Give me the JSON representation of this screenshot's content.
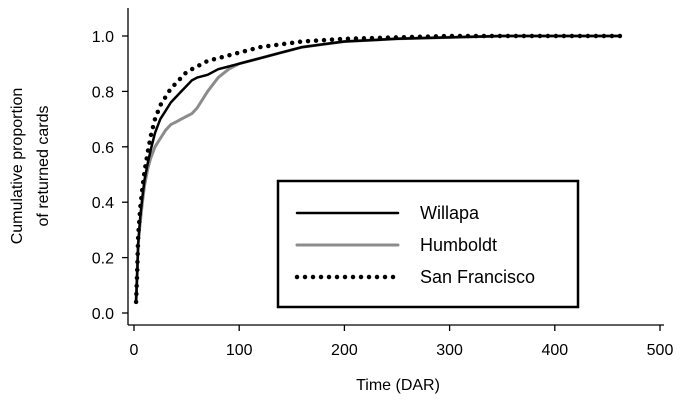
{
  "chart_data": {
    "type": "line",
    "xlabel": "Time (DAR)",
    "ylabel": "Cumulative proportion of returned cards",
    "ylabel_lines": [
      "Cumulative proportion",
      "of returned cards"
    ],
    "xlim": [
      0,
      500
    ],
    "ylim": [
      0.0,
      1.0
    ],
    "x_ticks": [
      0,
      100,
      200,
      300,
      400,
      500
    ],
    "y_ticks": [
      0.0,
      0.2,
      0.4,
      0.6,
      0.8,
      1.0
    ],
    "x_tick_labels": [
      "0",
      "100",
      "200",
      "300",
      "400",
      "500"
    ],
    "y_tick_labels": [
      "0.0",
      "0.2",
      "0.4",
      "0.6",
      "0.8",
      "1.0"
    ],
    "grid": false,
    "legend_position": "lower-right",
    "series": [
      {
        "name": "Willapa",
        "color": "#000000",
        "style": "solid",
        "x": [
          2,
          3,
          4,
          6,
          8,
          10,
          13,
          16,
          20,
          25,
          30,
          35,
          40,
          45,
          50,
          55,
          60,
          70,
          80,
          90,
          100,
          120,
          140,
          160,
          180,
          200,
          250,
          300,
          350,
          400,
          460
        ],
        "y": [
          0.04,
          0.14,
          0.25,
          0.35,
          0.42,
          0.48,
          0.54,
          0.59,
          0.65,
          0.7,
          0.73,
          0.76,
          0.78,
          0.8,
          0.82,
          0.84,
          0.85,
          0.86,
          0.88,
          0.89,
          0.9,
          0.92,
          0.94,
          0.96,
          0.97,
          0.98,
          0.99,
          0.995,
          1.0,
          1.0,
          1.0
        ]
      },
      {
        "name": "Humboldt",
        "color": "#8c8c8c",
        "style": "solid",
        "x": [
          2,
          3,
          4,
          6,
          8,
          10,
          13,
          16,
          20,
          25,
          30,
          35,
          40,
          45,
          50,
          55,
          60,
          65,
          70,
          80,
          90,
          100,
          120,
          140,
          160,
          180,
          200,
          250,
          300,
          350,
          400,
          460
        ],
        "y": [
          0.05,
          0.15,
          0.25,
          0.33,
          0.4,
          0.46,
          0.52,
          0.56,
          0.6,
          0.63,
          0.66,
          0.68,
          0.69,
          0.7,
          0.71,
          0.72,
          0.74,
          0.77,
          0.8,
          0.85,
          0.88,
          0.9,
          0.92,
          0.94,
          0.96,
          0.97,
          0.98,
          0.99,
          0.995,
          1.0,
          1.0,
          1.0
        ]
      },
      {
        "name": "San Francisco",
        "color": "#000000",
        "style": "dotted",
        "x": [
          2,
          3,
          4,
          6,
          8,
          10,
          13,
          16,
          20,
          25,
          30,
          35,
          40,
          45,
          50,
          60,
          70,
          80,
          90,
          100,
          120,
          140,
          160,
          180,
          200,
          250,
          300,
          350,
          400,
          468
        ],
        "y": [
          0.04,
          0.15,
          0.28,
          0.38,
          0.45,
          0.51,
          0.58,
          0.64,
          0.7,
          0.75,
          0.78,
          0.81,
          0.83,
          0.85,
          0.87,
          0.89,
          0.91,
          0.92,
          0.93,
          0.94,
          0.96,
          0.97,
          0.98,
          0.985,
          0.99,
          0.995,
          1.0,
          1.0,
          1.0,
          1.0
        ]
      }
    ]
  }
}
